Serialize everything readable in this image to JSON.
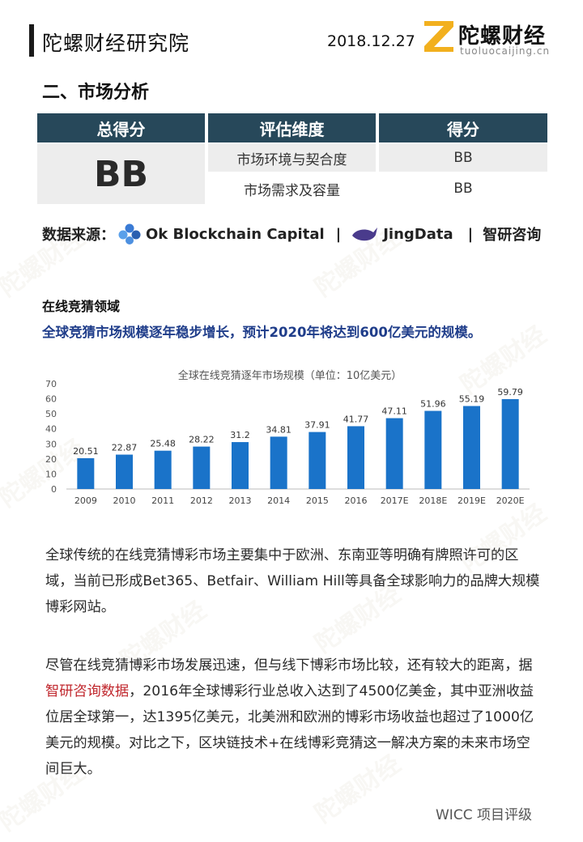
{
  "header": {
    "org": "陀螺财经研究院",
    "date": "2018.12.27",
    "logo_cn": "陀螺财经",
    "logo_en": "tuoluocaijing.cn"
  },
  "section_title": "二、市场分析",
  "score_table": {
    "headers": [
      "总得分",
      "评估维度",
      "得分"
    ],
    "total": "BB",
    "rows": [
      {
        "dimension": "市场环境与契合度",
        "score": "BB"
      },
      {
        "dimension": "市场需求及容量",
        "score": "BB"
      }
    ]
  },
  "sources": {
    "label": "数据来源：",
    "items": [
      "Ok Blockchain Capital",
      "JingData",
      "智研咨询"
    ],
    "separator": "|"
  },
  "subsection": "在线竞猜领域",
  "highlight": "全球竞猜市场规模逐年稳步增长，预计2020年将达到600亿美元的规模。",
  "chart_data": {
    "type": "bar",
    "title": "全球在线竞猜逐年市场规模（单位：10亿美元）",
    "categories": [
      "2009",
      "2010",
      "2011",
      "2012",
      "2013",
      "2014",
      "2015",
      "2016",
      "2017E",
      "2018E",
      "2019E",
      "2020E"
    ],
    "values": [
      20.51,
      22.87,
      25.48,
      28.22,
      31.2,
      34.81,
      37.91,
      41.77,
      47.11,
      51.96,
      55.19,
      59.79
    ],
    "value_labels": [
      "20.51",
      "22.87",
      "25.48",
      "28.22",
      "31.2",
      "34.81",
      "37.91",
      "41.77",
      "47.11",
      "51.96",
      "55.19",
      "59.79"
    ],
    "ylim": [
      0,
      70
    ],
    "yticks": [
      "0",
      "10",
      "20",
      "30",
      "40",
      "50",
      "60",
      "70"
    ],
    "grid": false,
    "bar_color": "#1a73c9"
  },
  "paragraphs": {
    "p1": "全球传统的在线竞猜博彩市场主要集中于欧洲、东南亚等明确有牌照许可的区域，当前已形成Bet365、Betfair、William Hill等具备全球影响力的品牌大规模博彩网站。",
    "p2_before": "尽管在线竞猜博彩市场发展迅速，但与线下博彩市场比较，还有较大的距离，据",
    "p2_link": "智研咨询数据",
    "p2_after": "，2016年全球博彩行业总收入达到了4500亿美金，其中亚洲收益位居全球第一，达1395亿美元，北美洲和欧洲的博彩市场收益也超过了1000亿美元的规模。对比之下，区块链技术+在线博彩竞猜这一解决方案的未来市场空间巨大。"
  },
  "footer": "WICC 项目评级",
  "colors": {
    "table_header": "#27485a",
    "highlight_blue": "#1f3d8a",
    "link_red": "#c0272d",
    "logo_yellow": "#f2b01e"
  }
}
